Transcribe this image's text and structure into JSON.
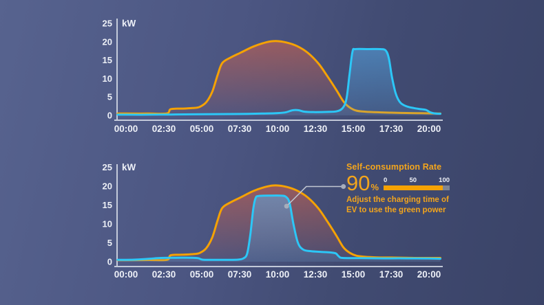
{
  "colors": {
    "solar": "#F5A203",
    "ev": "#2CC7F7",
    "solar_fill": "224,100,70",
    "ev_fill": "86,176,240",
    "axis": "#D9DFEA",
    "tick_text": "#EDF0F7",
    "annotation_orange": "#F3A51C",
    "bar_gray": "#7E8594",
    "connector_line": "#C2C7D2",
    "connector_dot": "#A7ADBB"
  },
  "chart_data": [
    {
      "type": "area",
      "name": "ev-charging-before-optimization",
      "y_axis_unit": "kW",
      "ylim": [
        0,
        25
      ],
      "y_ticks": [
        0,
        5,
        10,
        15,
        20,
        25
      ],
      "x_tick_labels": [
        "00:00",
        "02:30",
        "05:00",
        "07:30",
        "10:00",
        "12:30",
        "15:00",
        "17:30",
        "20:00"
      ],
      "x_tick_hours": [
        0,
        2.5,
        5,
        7.5,
        10,
        12.5,
        15,
        17.5,
        20
      ],
      "grid": false,
      "legend": "none",
      "series": [
        {
          "name": "solar-production",
          "color_key": "solar",
          "points": [
            [
              -0.55,
              0.5
            ],
            [
              0,
              0.5
            ],
            [
              1.5,
              0.5
            ],
            [
              2.7,
              0.55
            ],
            [
              2.95,
              1.7
            ],
            [
              3.7,
              1.85
            ],
            [
              4.4,
              2.0
            ],
            [
              4.85,
              2.3
            ],
            [
              5.3,
              3.6
            ],
            [
              5.7,
              6.5
            ],
            [
              6.05,
              11.0
            ],
            [
              6.35,
              14.2
            ],
            [
              6.9,
              15.7
            ],
            [
              7.6,
              17.1
            ],
            [
              8.4,
              18.7
            ],
            [
              9.3,
              19.9
            ],
            [
              9.9,
              20.2
            ],
            [
              10.6,
              19.8
            ],
            [
              11.3,
              18.8
            ],
            [
              12.0,
              17.0
            ],
            [
              12.7,
              14.1
            ],
            [
              13.3,
              10.6
            ],
            [
              13.9,
              6.8
            ],
            [
              14.35,
              3.8
            ],
            [
              14.75,
              2.2
            ],
            [
              15.2,
              1.3
            ],
            [
              15.8,
              1.0
            ],
            [
              16.6,
              0.85
            ],
            [
              17.5,
              0.75
            ],
            [
              18.5,
              0.65
            ],
            [
              19.5,
              0.6
            ],
            [
              20.75,
              0.5
            ]
          ]
        },
        {
          "name": "ev-charging",
          "color_key": "ev",
          "points": [
            [
              -0.55,
              0.2
            ],
            [
              0,
              0.2
            ],
            [
              1.5,
              0.2
            ],
            [
              3,
              0.25
            ],
            [
              4.5,
              0.3
            ],
            [
              6,
              0.35
            ],
            [
              7.5,
              0.4
            ],
            [
              9,
              0.5
            ],
            [
              9.9,
              0.6
            ],
            [
              10.5,
              0.8
            ],
            [
              11.0,
              1.4
            ],
            [
              11.4,
              1.4
            ],
            [
              11.8,
              1.0
            ],
            [
              12.5,
              0.9
            ],
            [
              13.3,
              0.95
            ],
            [
              13.9,
              1.1
            ],
            [
              14.3,
              2.0
            ],
            [
              14.55,
              4.5
            ],
            [
              14.75,
              11.0
            ],
            [
              14.95,
              17.3
            ],
            [
              15.15,
              18.0
            ],
            [
              16.0,
              18.0
            ],
            [
              16.8,
              18.0
            ],
            [
              17.15,
              17.6
            ],
            [
              17.35,
              15.5
            ],
            [
              17.55,
              10.5
            ],
            [
              17.8,
              6.0
            ],
            [
              18.1,
              3.5
            ],
            [
              18.5,
              2.5
            ],
            [
              19.0,
              2.0
            ],
            [
              19.45,
              1.7
            ],
            [
              19.8,
              1.5
            ],
            [
              20.1,
              0.8
            ],
            [
              20.45,
              0.5
            ],
            [
              20.75,
              0.45
            ]
          ]
        }
      ]
    },
    {
      "type": "area",
      "name": "ev-charging-after-optimization",
      "y_axis_unit": "kW",
      "ylim": [
        0,
        25
      ],
      "y_ticks": [
        0,
        5,
        10,
        15,
        20,
        25
      ],
      "x_tick_labels": [
        "00:00",
        "02:30",
        "05:00",
        "07:30",
        "10:00",
        "12:30",
        "15:00",
        "17:30",
        "20:00"
      ],
      "x_tick_hours": [
        0,
        2.5,
        5,
        7.5,
        10,
        12.5,
        15,
        17.5,
        20
      ],
      "grid": false,
      "legend": "none",
      "series": [
        {
          "name": "solar-production",
          "color_key": "solar",
          "points": [
            [
              -0.55,
              0.4
            ],
            [
              0,
              0.4
            ],
            [
              1.5,
              0.45
            ],
            [
              2.7,
              0.5
            ],
            [
              2.95,
              1.7
            ],
            [
              3.7,
              1.85
            ],
            [
              4.4,
              2.0
            ],
            [
              4.85,
              2.3
            ],
            [
              5.3,
              3.6
            ],
            [
              5.7,
              6.5
            ],
            [
              6.05,
              11.0
            ],
            [
              6.35,
              14.2
            ],
            [
              6.9,
              15.7
            ],
            [
              7.6,
              17.1
            ],
            [
              8.4,
              18.7
            ],
            [
              9.3,
              19.9
            ],
            [
              9.9,
              20.2
            ],
            [
              10.6,
              19.8
            ],
            [
              11.3,
              18.8
            ],
            [
              12.0,
              17.0
            ],
            [
              12.7,
              14.1
            ],
            [
              13.3,
              10.6
            ],
            [
              13.9,
              6.8
            ],
            [
              14.35,
              3.8
            ],
            [
              14.75,
              2.4
            ],
            [
              15.2,
              1.6
            ],
            [
              15.8,
              1.3
            ],
            [
              16.6,
              1.15
            ],
            [
              17.5,
              1.1
            ],
            [
              18.5,
              1.05
            ],
            [
              19.5,
              1.0
            ],
            [
              20.75,
              1.0
            ]
          ]
        },
        {
          "name": "ev-charging",
          "color_key": "ev",
          "points": [
            [
              -0.55,
              0.5
            ],
            [
              0,
              0.5
            ],
            [
              0.8,
              0.6
            ],
            [
              1.6,
              0.8
            ],
            [
              2.3,
              1.0
            ],
            [
              3.3,
              1.05
            ],
            [
              4.3,
              1.05
            ],
            [
              4.75,
              0.95
            ],
            [
              5.05,
              0.55
            ],
            [
              5.7,
              0.5
            ],
            [
              6.6,
              0.5
            ],
            [
              7.35,
              0.55
            ],
            [
              7.75,
              0.9
            ],
            [
              8.0,
              2.2
            ],
            [
              8.2,
              7.0
            ],
            [
              8.4,
              14.0
            ],
            [
              8.55,
              16.8
            ],
            [
              8.75,
              17.4
            ],
            [
              9.5,
              17.5
            ],
            [
              10.2,
              17.5
            ],
            [
              10.55,
              17.2
            ],
            [
              10.8,
              15.5
            ],
            [
              11.05,
              10.0
            ],
            [
              11.35,
              5.0
            ],
            [
              11.7,
              3.2
            ],
            [
              12.2,
              2.8
            ],
            [
              12.9,
              2.6
            ],
            [
              13.5,
              2.45
            ],
            [
              13.85,
              2.2
            ],
            [
              14.05,
              1.4
            ],
            [
              14.3,
              1.0
            ],
            [
              15.5,
              0.95
            ],
            [
              17.0,
              0.9
            ],
            [
              18.5,
              0.9
            ],
            [
              20.0,
              0.85
            ],
            [
              20.75,
              0.8
            ]
          ]
        }
      ],
      "annotation": {
        "title": "Self-consumption Rate",
        "value": "90",
        "unit": "%",
        "percent": 90,
        "scale_labels": [
          "0",
          "50",
          "100"
        ],
        "description_line1": "Adjust the charging time of",
        "description_line2": "EV to use the green power",
        "pointer": {
          "anchor_t": 10.6,
          "anchor_kw": 14.7,
          "elbow_t": 11.9,
          "elbow_kw": 19.9,
          "end_t": 14.35
        }
      }
    }
  ]
}
